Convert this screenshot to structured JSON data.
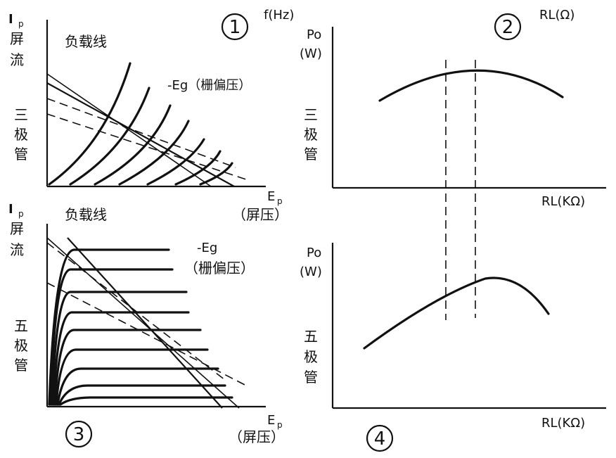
{
  "panels": {
    "triode_curves": {
      "number": "1",
      "y_axis": {
        "symbol": "I",
        "sub": "p",
        "name_chars": [
          "屏",
          "流"
        ]
      },
      "x_axis": {
        "symbol": "E",
        "sub": "p",
        "name": "（屏压）"
      },
      "tube_chars": [
        "三",
        "极",
        "管"
      ],
      "load_line_label": "负载线",
      "grid_bias_label": "-Eg（栅偏压）",
      "freq_label": "f(Hz)"
    },
    "triode_power": {
      "number": "2",
      "top_label": "RL(Ω)",
      "y_axis": {
        "symbol": "Po",
        "unit": "(W)"
      },
      "x_axis": {
        "label": "RL(KΩ)"
      },
      "tube_chars": [
        "三",
        "极",
        "管"
      ]
    },
    "pentode_curves": {
      "number": "3",
      "y_axis": {
        "symbol": "I",
        "sub": "p",
        "name_chars": [
          "屏",
          "流"
        ]
      },
      "x_axis": {
        "symbol": "E",
        "sub": "p",
        "name": "（屏压）"
      },
      "tube_chars": [
        "五",
        "极",
        "管"
      ],
      "load_line_label": "负载线",
      "grid_bias_symbol": "-Eg",
      "grid_bias_name": "（栅偏压）"
    },
    "pentode_power": {
      "number": "4",
      "y_axis": {
        "symbol": "Po",
        "unit": "(W)"
      },
      "x_axis": {
        "label": "RL(KΩ)"
      },
      "tube_chars": [
        "五",
        "极",
        "管"
      ]
    }
  }
}
